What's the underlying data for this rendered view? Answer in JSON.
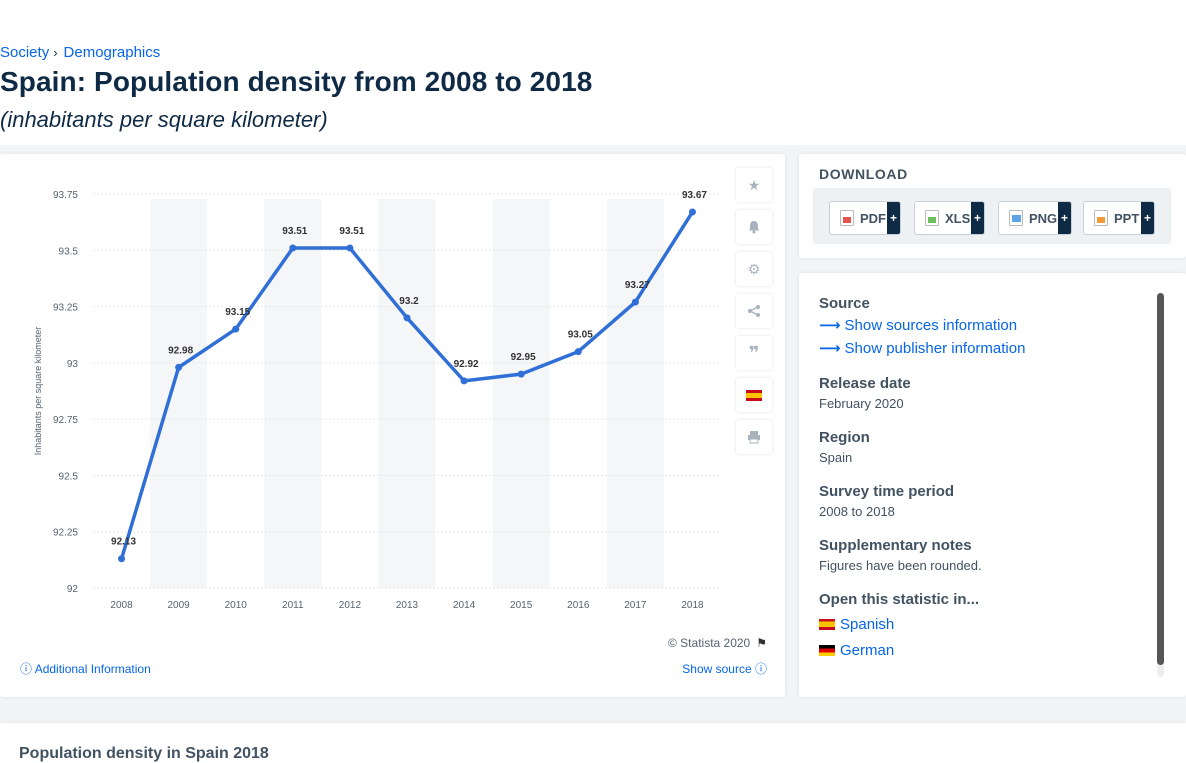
{
  "breadcrumb": {
    "item1": "Society",
    "item2": "Demographics",
    "separator": "›"
  },
  "page": {
    "title": "Spain: Population density from 2008 to 2018",
    "subtitle": "(inhabitants per square kilometer)"
  },
  "chart_card": {
    "credit": "© Statista 2020",
    "additional_info": "Additional Information",
    "show_source": "Show source",
    "side_buttons": [
      "star-icon",
      "bell-icon",
      "gear-icon",
      "share-icon",
      "quote-icon",
      "spain-flag-icon",
      "print-icon"
    ]
  },
  "chart_data": {
    "type": "line",
    "title": "",
    "xlabel": "",
    "ylabel": "Inhabitants per square kilometer",
    "categories": [
      "2008",
      "2009",
      "2010",
      "2011",
      "2012",
      "2013",
      "2014",
      "2015",
      "2016",
      "2017",
      "2018"
    ],
    "series": [
      {
        "values": [
          92.13,
          92.98,
          93.15,
          93.51,
          93.51,
          93.2,
          92.92,
          92.95,
          93.05,
          93.27,
          93.67
        ]
      }
    ],
    "data_labels": [
      "92.13",
      "92.98",
      "93.15",
      "93.51",
      "93.51",
      "93.2",
      "92.92",
      "92.95",
      "93.05",
      "93.27",
      "93.67"
    ],
    "y_ticks": [
      "92",
      "92.25",
      "92.5",
      "92.75",
      "93",
      "93.25",
      "93.5",
      "93.75"
    ],
    "ylim": [
      92,
      93.75
    ],
    "grid": true,
    "legend": "none",
    "line_color": "#2f6fd6"
  },
  "download": {
    "title": "DOWNLOAD",
    "buttons": [
      {
        "label": "PDF",
        "plus": "+",
        "color": "#e2574c"
      },
      {
        "label": "XLS",
        "plus": "+",
        "color": "#6cbf5b"
      },
      {
        "label": "PNG",
        "plus": "+",
        "color": "#5ba4e5"
      },
      {
        "label": "PPT",
        "plus": "+",
        "color": "#f39a3b"
      }
    ]
  },
  "info": {
    "source_heading": "Source",
    "show_sources": "Show sources information",
    "show_publisher": "Show publisher information",
    "release_heading": "Release date",
    "release_value": "February 2020",
    "region_heading": "Region",
    "region_value": "Spain",
    "period_heading": "Survey time period",
    "period_value": "2008 to 2018",
    "notes_heading": "Supplementary notes",
    "notes_value": "Figures have been rounded.",
    "open_heading": "Open this statistic in...",
    "lang1": "Spanish",
    "lang2": "German"
  },
  "bottom": {
    "title": "Population density in Spain 2018"
  }
}
